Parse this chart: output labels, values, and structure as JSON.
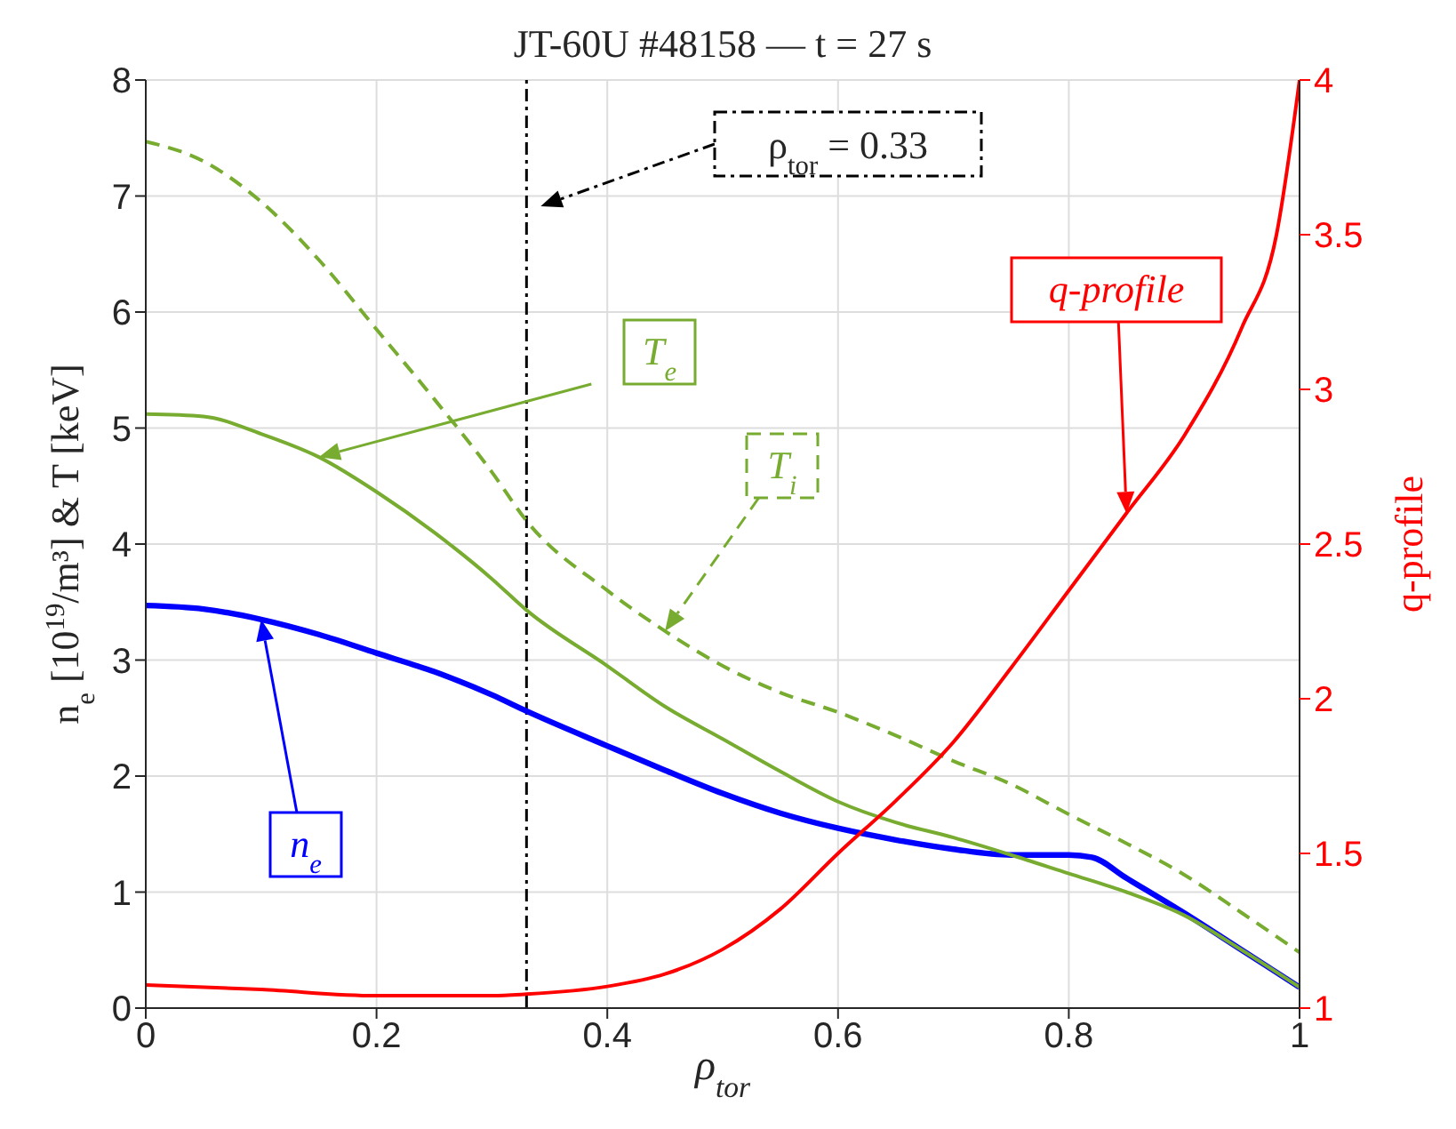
{
  "chart_data": {
    "type": "line",
    "title": "JT-60U #48158 — t = 27 s",
    "xlabel": "ρ$_{tor}$",
    "ylabel": "n$_{e}$ [10$^{19}$/m³] & T [keV]",
    "y2label": "q-profile",
    "xlim": [
      0,
      1
    ],
    "xticks": [
      0,
      0.2,
      0.4,
      0.6,
      0.8,
      1
    ],
    "ylim": [
      0,
      8
    ],
    "yticks": [
      0,
      1,
      2,
      3,
      4,
      5,
      6,
      7,
      8
    ],
    "y2lim": [
      1,
      4
    ],
    "y2ticks": [
      1,
      1.5,
      2,
      2.5,
      3,
      3.5,
      4
    ],
    "grid": true,
    "ref_lines": [
      {
        "axis": "x",
        "value": 0.33,
        "label": "ρ$_{tor}$ = 0.33",
        "color": "#000000",
        "line_style": "dashed"
      }
    ],
    "series": [
      {
        "name": "n$_{e}$",
        "color": "#0000ff",
        "line_style": "solid",
        "x": [
          0,
          0.05,
          0.1,
          0.15,
          0.2,
          0.25,
          0.3,
          0.33,
          0.4,
          0.45,
          0.5,
          0.55,
          0.6,
          0.65,
          0.7,
          0.75,
          0.8,
          0.82,
          0.85,
          0.9,
          0.95,
          1
        ],
        "values": [
          3.47,
          3.44,
          3.35,
          3.22,
          3.06,
          2.9,
          2.7,
          2.56,
          2.26,
          2.05,
          1.85,
          1.68,
          1.55,
          1.45,
          1.37,
          1.32,
          1.32,
          1.3,
          1.12,
          0.82,
          0.5,
          0.18
        ]
      },
      {
        "name": "T$_{e}$",
        "color": "#77ac30",
        "line_style": "solid",
        "x": [
          0,
          0.05,
          0.1,
          0.15,
          0.2,
          0.25,
          0.3,
          0.33,
          0.4,
          0.45,
          0.5,
          0.55,
          0.6,
          0.65,
          0.7,
          0.75,
          0.8,
          0.85,
          0.9,
          0.95,
          1
        ],
        "values": [
          5.12,
          5.1,
          4.95,
          4.75,
          4.45,
          4.1,
          3.7,
          3.43,
          2.95,
          2.6,
          2.32,
          2.04,
          1.78,
          1.6,
          1.47,
          1.32,
          1.16,
          1.0,
          0.8,
          0.5,
          0.18
        ]
      },
      {
        "name": "T$_{i}$",
        "color": "#77ac30",
        "line_style": "dashed",
        "x": [
          0,
          0.05,
          0.1,
          0.15,
          0.2,
          0.25,
          0.3,
          0.33,
          0.4,
          0.45,
          0.5,
          0.55,
          0.6,
          0.65,
          0.7,
          0.75,
          0.8,
          0.85,
          0.9,
          0.95,
          1
        ],
        "values": [
          7.47,
          7.3,
          6.95,
          6.45,
          5.85,
          5.25,
          4.62,
          4.2,
          3.6,
          3.25,
          2.95,
          2.72,
          2.55,
          2.35,
          2.13,
          1.93,
          1.67,
          1.42,
          1.15,
          0.82,
          0.48
        ]
      },
      {
        "name": "q-profile",
        "color": "#ff0000",
        "line_style": "solid",
        "axis": "y2",
        "x": [
          0,
          0.1,
          0.2,
          0.3,
          0.33,
          0.4,
          0.45,
          0.5,
          0.55,
          0.6,
          0.65,
          0.7,
          0.75,
          0.8,
          0.85,
          0.9,
          0.95,
          0.98,
          1
        ],
        "values": [
          1.075,
          1.06,
          1.04,
          1.04,
          1.045,
          1.07,
          1.11,
          1.19,
          1.32,
          1.5,
          1.67,
          1.86,
          2.1,
          2.35,
          2.6,
          2.85,
          3.2,
          3.5,
          4
        ]
      }
    ]
  }
}
